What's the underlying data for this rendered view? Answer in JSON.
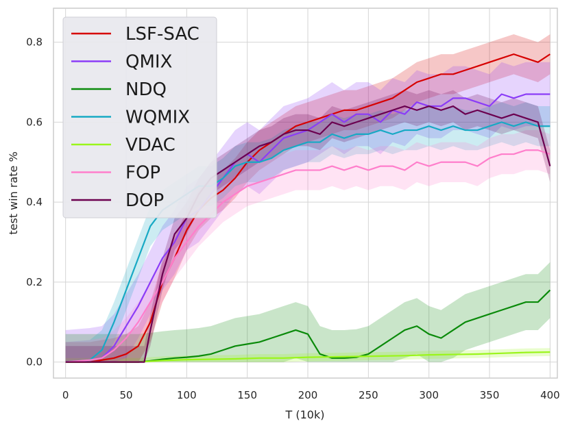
{
  "chart_data": {
    "type": "line",
    "title": "",
    "xlabel": "T (10k)",
    "ylabel": "test win rate %",
    "xlim": [
      -10,
      406
    ],
    "ylim": [
      -0.04,
      0.885
    ],
    "xticks": [
      0,
      50,
      100,
      150,
      200,
      250,
      300,
      350,
      400
    ],
    "yticks": [
      0.0,
      0.2,
      0.4,
      0.6,
      0.8
    ],
    "ytick_labels": [
      "0.0",
      "0.2",
      "0.4",
      "0.6",
      "0.8"
    ],
    "grid": true,
    "legend_position": "top-left",
    "series": [
      {
        "name": "LSF-SAC",
        "color": "#d60000",
        "x": [
          0,
          20,
          30,
          40,
          50,
          60,
          70,
          80,
          90,
          100,
          110,
          120,
          130,
          140,
          150,
          160,
          170,
          180,
          190,
          200,
          210,
          220,
          230,
          240,
          250,
          260,
          270,
          280,
          290,
          300,
          310,
          320,
          330,
          340,
          350,
          360,
          370,
          380,
          390,
          400
        ],
        "y": [
          0,
          0,
          0.005,
          0.01,
          0.02,
          0.04,
          0.1,
          0.2,
          0.26,
          0.33,
          0.38,
          0.41,
          0.43,
          0.46,
          0.5,
          0.53,
          0.55,
          0.57,
          0.59,
          0.6,
          0.61,
          0.62,
          0.63,
          0.63,
          0.64,
          0.65,
          0.66,
          0.68,
          0.7,
          0.71,
          0.72,
          0.72,
          0.73,
          0.74,
          0.75,
          0.76,
          0.77,
          0.76,
          0.75,
          0.77
        ],
        "band": 0.05
      },
      {
        "name": "QMIX",
        "color": "#8b3cf7",
        "x": [
          0,
          20,
          30,
          40,
          50,
          60,
          70,
          80,
          90,
          100,
          110,
          120,
          130,
          140,
          150,
          160,
          170,
          180,
          190,
          200,
          210,
          220,
          230,
          240,
          250,
          260,
          270,
          280,
          290,
          300,
          310,
          320,
          330,
          340,
          350,
          360,
          370,
          380,
          390,
          400
        ],
        "y": [
          0,
          0.005,
          0.01,
          0.04,
          0.09,
          0.14,
          0.2,
          0.26,
          0.3,
          0.36,
          0.38,
          0.42,
          0.46,
          0.5,
          0.52,
          0.5,
          0.53,
          0.56,
          0.57,
          0.58,
          0.6,
          0.62,
          0.6,
          0.62,
          0.62,
          0.6,
          0.63,
          0.62,
          0.65,
          0.64,
          0.64,
          0.66,
          0.66,
          0.65,
          0.64,
          0.67,
          0.66,
          0.67,
          0.67,
          0.67
        ],
        "band": 0.08
      },
      {
        "name": "NDQ",
        "color": "#0a8a0a",
        "x": [
          0,
          50,
          60,
          70,
          80,
          90,
          100,
          110,
          120,
          130,
          140,
          150,
          160,
          170,
          180,
          190,
          200,
          210,
          220,
          230,
          240,
          250,
          260,
          270,
          280,
          290,
          300,
          310,
          320,
          330,
          340,
          350,
          360,
          370,
          380,
          390,
          400
        ],
        "y": [
          0,
          0,
          0,
          0.003,
          0.007,
          0.01,
          0.012,
          0.015,
          0.02,
          0.03,
          0.04,
          0.045,
          0.05,
          0.06,
          0.07,
          0.08,
          0.07,
          0.02,
          0.01,
          0.01,
          0.012,
          0.02,
          0.04,
          0.06,
          0.08,
          0.09,
          0.07,
          0.06,
          0.08,
          0.1,
          0.11,
          0.12,
          0.13,
          0.14,
          0.15,
          0.15,
          0.18
        ],
        "band": 0.07
      },
      {
        "name": "WQMIX",
        "color": "#17a9c4",
        "x": [
          0,
          20,
          30,
          40,
          50,
          60,
          70,
          80,
          90,
          100,
          110,
          120,
          130,
          140,
          150,
          160,
          170,
          180,
          190,
          200,
          210,
          220,
          230,
          240,
          250,
          260,
          270,
          280,
          290,
          300,
          310,
          320,
          330,
          340,
          350,
          360,
          370,
          380,
          390,
          400
        ],
        "y": [
          0,
          0.005,
          0.03,
          0.1,
          0.18,
          0.26,
          0.34,
          0.38,
          0.4,
          0.42,
          0.44,
          0.44,
          0.46,
          0.49,
          0.5,
          0.5,
          0.51,
          0.53,
          0.54,
          0.55,
          0.55,
          0.57,
          0.56,
          0.57,
          0.57,
          0.58,
          0.57,
          0.58,
          0.58,
          0.59,
          0.58,
          0.59,
          0.58,
          0.58,
          0.59,
          0.6,
          0.59,
          0.6,
          0.59,
          0.59
        ],
        "band": 0.05
      },
      {
        "name": "VDAC",
        "color": "#9af51a",
        "x": [
          0,
          60,
          80,
          100,
          120,
          140,
          160,
          180,
          200,
          220,
          240,
          260,
          280,
          300,
          320,
          340,
          360,
          380,
          400
        ],
        "y": [
          0,
          0,
          0.004,
          0.006,
          0.007,
          0.008,
          0.01,
          0.01,
          0.012,
          0.013,
          0.014,
          0.015,
          0.016,
          0.018,
          0.019,
          0.02,
          0.022,
          0.024,
          0.025
        ],
        "band": 0.01
      },
      {
        "name": "FOP",
        "color": "#ff7ecb",
        "x": [
          0,
          20,
          30,
          40,
          50,
          60,
          70,
          80,
          90,
          100,
          110,
          120,
          130,
          140,
          150,
          160,
          170,
          180,
          190,
          200,
          210,
          220,
          230,
          240,
          250,
          260,
          270,
          280,
          290,
          300,
          310,
          320,
          330,
          340,
          350,
          360,
          370,
          380,
          390,
          400
        ],
        "y": [
          0,
          0.005,
          0.01,
          0.03,
          0.06,
          0.1,
          0.15,
          0.2,
          0.26,
          0.3,
          0.34,
          0.37,
          0.4,
          0.42,
          0.44,
          0.45,
          0.46,
          0.47,
          0.48,
          0.48,
          0.48,
          0.49,
          0.48,
          0.49,
          0.48,
          0.49,
          0.49,
          0.48,
          0.5,
          0.49,
          0.5,
          0.5,
          0.5,
          0.49,
          0.51,
          0.52,
          0.52,
          0.53,
          0.53,
          0.52
        ],
        "band": 0.05
      },
      {
        "name": "DOP",
        "color": "#6b004f",
        "x": [
          0,
          30,
          40,
          50,
          60,
          65,
          70,
          80,
          90,
          100,
          110,
          120,
          130,
          140,
          150,
          160,
          170,
          180,
          190,
          200,
          210,
          220,
          230,
          240,
          250,
          260,
          270,
          280,
          290,
          300,
          310,
          320,
          330,
          340,
          350,
          360,
          370,
          380,
          390,
          400
        ],
        "y": [
          0,
          0,
          0,
          0,
          0,
          0,
          0.08,
          0.22,
          0.32,
          0.36,
          0.42,
          0.46,
          0.48,
          0.5,
          0.52,
          0.54,
          0.55,
          0.57,
          0.58,
          0.58,
          0.57,
          0.6,
          0.59,
          0.6,
          0.61,
          0.62,
          0.63,
          0.64,
          0.63,
          0.64,
          0.63,
          0.64,
          0.62,
          0.63,
          0.62,
          0.61,
          0.62,
          0.61,
          0.6,
          0.49
        ],
        "band": 0.04
      }
    ]
  }
}
